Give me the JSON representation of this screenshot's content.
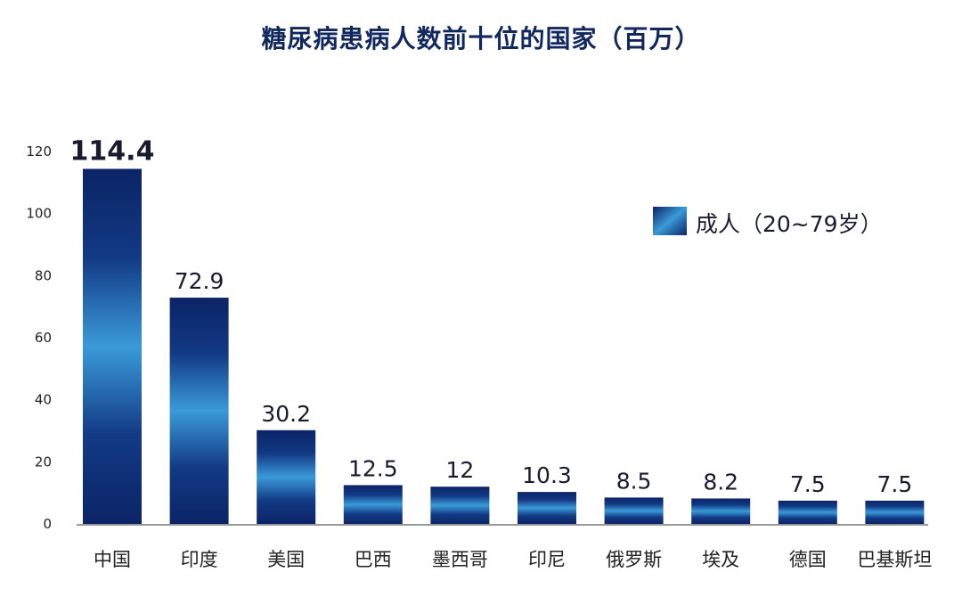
{
  "chart_data": {
    "type": "bar",
    "title": "糖尿病患病人数前十位的国家（百万）",
    "categories": [
      "中国",
      "印度",
      "美国",
      "巴西",
      "墨西哥",
      "印尼",
      "俄罗斯",
      "埃及",
      "德国",
      "巴基斯坦"
    ],
    "series": [
      {
        "name": "成人（20~79岁）",
        "values": [
          114.4,
          72.9,
          30.2,
          12.5,
          12,
          10.3,
          8.5,
          8.2,
          7.5,
          7.5
        ]
      }
    ],
    "data_labels": [
      "114.4",
      "72.9",
      "30.2",
      "12.5",
      "12",
      "10.3",
      "8.5",
      "8.2",
      "7.5",
      "7.5"
    ],
    "yticks": [
      0,
      20,
      40,
      60,
      80,
      100,
      120
    ],
    "ylim": [
      0,
      120
    ],
    "xlabel": "",
    "ylabel": "",
    "grid": false,
    "legend_position": "top-right",
    "colors": {
      "bar_dark": "#0b2466",
      "bar_light": "#3a9ad8",
      "title": "#10285e",
      "highlight_label": "#d0312d",
      "axis": "#333333"
    }
  }
}
